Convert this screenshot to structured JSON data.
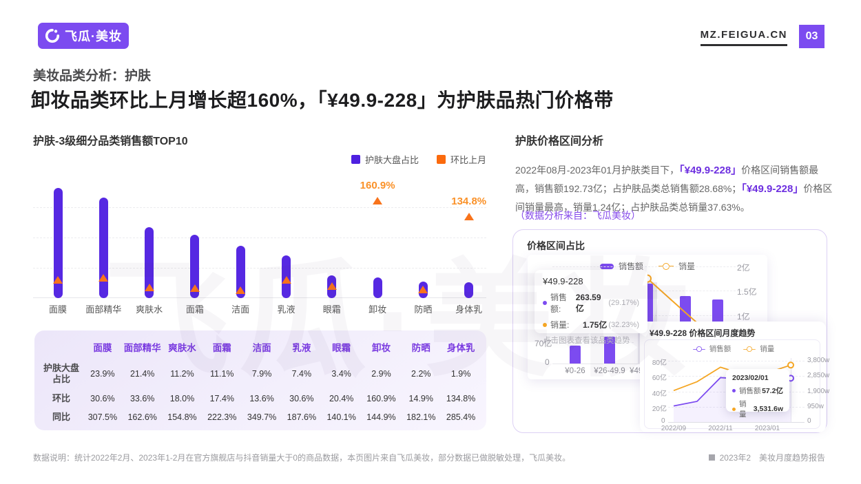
{
  "header": {
    "logo_text": "飞瓜·美妆",
    "site": "MZ.FEIGUA.CN",
    "page_number": "03"
  },
  "titles": {
    "kicker": "美妆品类分析：护肤",
    "main": "卸妆品类环比上月增长超160%，「¥49.9-228」为护肤品热门价格带"
  },
  "left_chart": {
    "title": "护肤-3级细分品类销售额TOP10",
    "legend": [
      {
        "label": "护肤大盘占比",
        "color": "#4E20E0"
      },
      {
        "label": "环比上月",
        "color": "#FB6A0D"
      }
    ],
    "chart_data": {
      "type": "bar",
      "categories": [
        "面膜",
        "面部精华",
        "爽肤水",
        "面霜",
        "洁面",
        "乳液",
        "眼霜",
        "卸妆",
        "防晒",
        "身体乳"
      ],
      "series": [
        {
          "name": "护肤大盘占比",
          "mark": "bar",
          "color": "#5628E2",
          "values_pct": [
            23.9,
            21.4,
            11.2,
            11.1,
            7.9,
            7.4,
            3.4,
            2.9,
            2.2,
            1.9
          ],
          "bar_height_rel": [
            0.925,
            0.844,
            0.595,
            0.532,
            0.439,
            0.358,
            0.191,
            0.173,
            0.139,
            0.133
          ]
        },
        {
          "name": "环比上月",
          "mark": "triangle",
          "color": "#F8731B",
          "values_pct": [
            30.6,
            33.6,
            18.0,
            17.4,
            13.6,
            30.6,
            20.4,
            160.9,
            14.9,
            134.8
          ]
        }
      ],
      "secondary_axis_max_pct": 196,
      "gridlines_pct": [
        50,
        100,
        150
      ],
      "callout_threshold_pct": 100,
      "grid": "dashed",
      "legend_position": "top-right"
    }
  },
  "table": {
    "columns": [
      "面膜",
      "面部精华",
      "爽肤水",
      "面霜",
      "洁面",
      "乳液",
      "眼霜",
      "卸妆",
      "防晒",
      "身体乳"
    ],
    "rows": [
      {
        "label": "护肤大盘占比",
        "values": [
          "23.9%",
          "21.4%",
          "11.2%",
          "11.1%",
          "7.9%",
          "7.4%",
          "3.4%",
          "2.9%",
          "2.2%",
          "1.9%"
        ]
      },
      {
        "label": "环比",
        "values": [
          "30.6%",
          "33.6%",
          "18.0%",
          "17.4%",
          "13.6%",
          "30.6%",
          "20.4%",
          "160.9%",
          "14.9%",
          "134.8%"
        ]
      },
      {
        "label": "同比",
        "values": [
          "307.5%",
          "162.6%",
          "154.8%",
          "222.3%",
          "349.7%",
          "187.6%",
          "140.1%",
          "144.9%",
          "182.1%",
          "285.4%"
        ]
      }
    ]
  },
  "right": {
    "title": "护肤价格区间分析",
    "paragraph_segments": [
      {
        "text": "2022年08月-2023年01月护肤类目下，",
        "em": false
      },
      {
        "text": "「¥49.9-228」",
        "em": true
      },
      {
        "text": "价格区间销售额最高，销售额192.73亿；占护肤品类总销售额28.68%；",
        "em": false
      },
      {
        "text": "「¥49.9-228」",
        "em": true
      },
      {
        "text": "价格区间销量最高，销量1.24亿；占护肤品类总销量37.63%。",
        "em": false
      }
    ],
    "note": "（数据分析来自：飞瓜美妆）"
  },
  "price_card": {
    "title": "价格区间占比",
    "legend": [
      {
        "label": "销售额",
        "color": "#7C4BF0"
      },
      {
        "label": "销量",
        "color": "#F5A623"
      }
    ],
    "y_axis_right": [
      "2亿",
      "1.5亿",
      "1亿"
    ],
    "y_axis_left": [
      "70亿",
      "0"
    ],
    "chart_data": {
      "type": "bar+line",
      "categories": [
        "¥0-26",
        "¥26-49.9",
        "¥49.9-228",
        "",
        ""
      ],
      "sales_bars_yi_est": [
        60,
        88,
        264,
        223,
        212
      ],
      "volume_line_visible": [
        {
          "i": 1,
          "v": 0.97
        },
        {
          "i": 2,
          "v": 1.75
        },
        {
          "i": 3,
          "v": 1.05
        }
      ],
      "highlight_category_index": 2,
      "y_right_ticks_yi": [
        2,
        1.5,
        1
      ],
      "grid": "dashed"
    },
    "tooltip": {
      "title": "¥49.9-228",
      "rows": [
        {
          "label": "销售额:",
          "value": "263.59亿",
          "pct": "(29.17%)",
          "color": "#7C4BF0"
        },
        {
          "label": "销量:",
          "value": "1.75亿",
          "pct": "(32.23%)",
          "color": "#F5A623"
        }
      ],
      "footer": "点击图表查看该品类趋势"
    }
  },
  "trend_card": {
    "title": "¥49.9-228 价格区间月度趋势",
    "legend": [
      {
        "label": "销售额",
        "color": "#7C4BF0"
      },
      {
        "label": "销量",
        "color": "#F5A623"
      }
    ],
    "chart_data": {
      "type": "line",
      "x": [
        "2022/09",
        "2022/10",
        "2022/11",
        "2022/12",
        "2023/01",
        "2023/02"
      ],
      "x_tick_labels": [
        "2022/09",
        "2022/11",
        "2023/01"
      ],
      "series": [
        {
          "name": "销售额",
          "unit": "亿",
          "color": "#7C4BF0",
          "area": true,
          "values": [
            21,
            27,
            58,
            56,
            50,
            57.2
          ]
        },
        {
          "name": "销量",
          "unit": "w",
          "color": "#F5A623",
          "area": false,
          "values": [
            1950,
            2500,
            3400,
            2950,
            3050,
            3531.6
          ]
        }
      ],
      "y_left_ticks": [
        "80亿",
        "60亿",
        "40亿",
        "20亿"
      ],
      "y_left_max": 80,
      "y_right_ticks": [
        "3,800w",
        "2,850w",
        "1,900w",
        "950w"
      ],
      "y_right_max": 3800,
      "y_zero_label": "0",
      "grid": "dashed"
    },
    "tooltip": {
      "date": "2023/02/01",
      "rows": [
        {
          "label": "销售额",
          "value": "57.2亿",
          "color": "#7C4BF0"
        },
        {
          "label": "销量",
          "value": "3,531.6w",
          "color": "#F5A623"
        }
      ]
    }
  },
  "footer": {
    "left": "数据说明：统计2022年2月、2023年1-2月在官方旗舰店与抖音销量大于0的商品数据，本页图片来自飞瓜美妆，部分数据已做脱敏处理，飞瓜美妆。",
    "right": "2023年2　美妆月度趋势报告"
  },
  "watermark": "飞瓜·美妆",
  "colors": {
    "brand_purple": "#7C4BF0",
    "bar_purple": "#5628E2",
    "orange": "#F8731B",
    "yellow": "#F5A623",
    "table_header_purple": "#7A3BE0"
  }
}
